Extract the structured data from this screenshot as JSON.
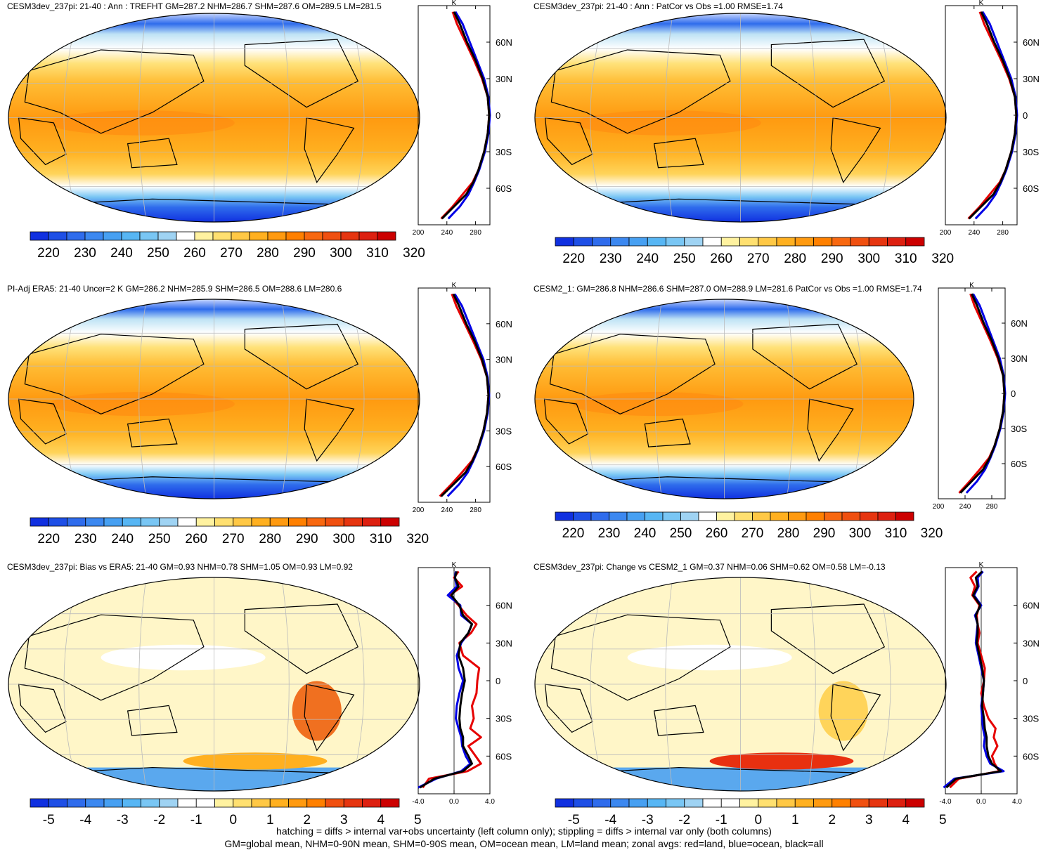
{
  "footer": {
    "line1": "hatching = diffs > internal var+obs uncertainty (left column only); stippling = diffs > internal var only (both columns)",
    "line2": "GM=global mean, NHM=0-90N mean, SHM=0-90S mean, OM=ocean mean, LM=land mean; zonal avgs: red=land, blue=ocean, black=all"
  },
  "zonal_axis": {
    "unit": "K",
    "lat_labels": [
      "60N",
      "30N",
      "0",
      "30S",
      "60S"
    ],
    "abs_ticks": [
      "200",
      "240",
      "280"
    ],
    "diff_ticks": [
      "-4.0",
      "0.0",
      "4.0"
    ]
  },
  "colorbars": {
    "abs": {
      "labels": [
        "220",
        "230",
        "240",
        "250",
        "260",
        "270",
        "280",
        "290",
        "300",
        "310",
        "320"
      ],
      "colors": [
        "#1030e0",
        "#1e4fe6",
        "#2f6cec",
        "#3c88f0",
        "#47a0f2",
        "#57b6f4",
        "#79c6f4",
        "#9fd3f3",
        "#ffffff",
        "#fff2a0",
        "#ffe070",
        "#ffc845",
        "#ffb020",
        "#ff9a10",
        "#ff8000",
        "#f86810",
        "#f05010",
        "#e63510",
        "#dd2010",
        "#cc0000"
      ]
    },
    "diff": {
      "labels": [
        "-5",
        "-4",
        "-3",
        "-2",
        "-1",
        "0",
        "1",
        "2",
        "3",
        "4",
        "5"
      ],
      "colors": [
        "#1030e0",
        "#1e4fe6",
        "#2f6cec",
        "#3c88f0",
        "#47a0f2",
        "#57b6f4",
        "#79c6f4",
        "#9fd3f3",
        "#ffffff",
        "#ffffff",
        "#fff2a0",
        "#ffe070",
        "#ffc845",
        "#ffb020",
        "#ff9a10",
        "#ff8000",
        "#f05010",
        "#e63510",
        "#dd2010",
        "#cc0000"
      ]
    }
  },
  "panels": [
    {
      "title": "CESM3dev_237pi: 21-40 : Ann : TREFHT GM=287.2 NHM=286.7 SHM=287.6 OM=289.5 LM=281.5",
      "kind": "abs"
    },
    {
      "title": "CESM3dev_237pi: 21-40 : Ann : PatCor vs Obs =1.00 RMSE=1.74",
      "kind": "abs"
    },
    {
      "title": "PI-Adj ERA5: 21-40 Uncer=2 K GM=286.2 NHM=285.9 SHM=286.5 OM=288.6 LM=280.6",
      "kind": "abs"
    },
    {
      "title": "CESM2_1: GM=286.8 NHM=286.6 SHM=287.0 OM=288.9 LM=281.6 PatCor vs Obs =1.00 RMSE=1.74",
      "kind": "abs"
    },
    {
      "title": "CESM3dev_237pi: Bias vs ERA5: 21-40 GM=0.93 NHM=0.78 SHM=1.05 OM=0.93 LM=0.92",
      "kind": "diff"
    },
    {
      "title": "CESM3dev_237pi: Change vs CESM2_1 GM=0.37 NHM=0.06 SHM=0.62 OM=0.58 LM=-0.13",
      "kind": "diff"
    }
  ],
  "chart_data": [
    {
      "type": "line",
      "title": "CESM3dev_237pi: 21-40 : Ann : TREFHT GM=287.2 NHM=286.7 SHM=287.6 OM=289.5 LM=281.5",
      "xlabel": "K",
      "xlim": [
        200,
        300
      ],
      "ylim": [
        -90,
        90
      ],
      "lat": [
        -85,
        -75,
        -65,
        -55,
        -45,
        -30,
        -15,
        0,
        15,
        30,
        45,
        60,
        75,
        85
      ],
      "series": [
        {
          "name": "red",
          "values": [
            232,
            248,
            262,
            276,
            284,
            292,
            297,
            299,
            297,
            289,
            278,
            266,
            254,
            248
          ]
        },
        {
          "name": "blue",
          "values": [
            242,
            258,
            270,
            278,
            285,
            293,
            298,
            300,
            298,
            292,
            282,
            272,
            262,
            252
          ]
        },
        {
          "name": "black",
          "values": [
            233,
            250,
            267,
            277,
            284,
            292,
            297,
            299,
            297,
            290,
            280,
            268,
            258,
            250
          ]
        }
      ]
    },
    {
      "type": "line",
      "title": "CESM3dev_237pi: 21-40 : Ann : PatCor vs Obs =1.00 RMSE=1.74",
      "xlabel": "K",
      "xlim": [
        200,
        300
      ],
      "ylim": [
        -90,
        90
      ],
      "lat": [
        -85,
        -75,
        -65,
        -55,
        -45,
        -30,
        -15,
        0,
        15,
        30,
        45,
        60,
        75,
        85
      ],
      "series": [
        {
          "name": "red",
          "values": [
            232,
            248,
            262,
            276,
            284,
            292,
            297,
            299,
            297,
            289,
            278,
            266,
            254,
            248
          ]
        },
        {
          "name": "blue",
          "values": [
            242,
            258,
            270,
            278,
            285,
            293,
            298,
            300,
            298,
            292,
            282,
            272,
            262,
            252
          ]
        },
        {
          "name": "black",
          "values": [
            233,
            250,
            267,
            277,
            284,
            292,
            297,
            299,
            297,
            290,
            280,
            268,
            258,
            250
          ]
        }
      ]
    },
    {
      "type": "line",
      "title": "PI-Adj ERA5: 21-40 Uncer=2 K GM=286.2 NHM=285.9 SHM=286.5 OM=288.6 LM=280.6",
      "xlabel": "K",
      "xlim": [
        200,
        300
      ],
      "ylim": [
        -90,
        90
      ],
      "lat": [
        -85,
        -75,
        -65,
        -55,
        -45,
        -30,
        -15,
        0,
        15,
        30,
        45,
        60,
        75,
        85
      ],
      "series": [
        {
          "name": "red",
          "values": [
            230,
            246,
            261,
            275,
            283,
            291,
            296,
            298,
            296,
            288,
            277,
            265,
            253,
            247
          ]
        },
        {
          "name": "blue",
          "values": [
            241,
            257,
            269,
            277,
            284,
            292,
            297,
            299,
            297,
            291,
            281,
            271,
            261,
            251
          ]
        },
        {
          "name": "black",
          "values": [
            232,
            249,
            266,
            276,
            283,
            291,
            296,
            298,
            296,
            289,
            279,
            267,
            257,
            249
          ]
        }
      ]
    },
    {
      "type": "line",
      "title": "CESM2_1: GM=286.8 NHM=286.6 SHM=287.0 OM=288.9 LM=281.6 PatCor vs Obs =1.00 RMSE=1.74",
      "xlabel": "K",
      "xlim": [
        200,
        300
      ],
      "ylim": [
        -90,
        90
      ],
      "lat": [
        -85,
        -75,
        -65,
        -55,
        -45,
        -30,
        -15,
        0,
        15,
        30,
        45,
        60,
        75,
        85
      ],
      "series": [
        {
          "name": "red",
          "values": [
            231,
            247,
            262,
            276,
            284,
            292,
            297,
            299,
            297,
            289,
            278,
            266,
            254,
            248
          ]
        },
        {
          "name": "blue",
          "values": [
            242,
            258,
            270,
            278,
            285,
            293,
            298,
            300,
            298,
            292,
            282,
            272,
            262,
            252
          ]
        },
        {
          "name": "black",
          "values": [
            233,
            250,
            267,
            277,
            284,
            292,
            297,
            299,
            297,
            290,
            280,
            268,
            258,
            250
          ]
        }
      ]
    },
    {
      "type": "line",
      "title": "CESM3dev_237pi: Bias vs ERA5: 21-40 GM=0.93 NHM=0.78 SHM=1.05 OM=0.93 LM=0.92",
      "xlabel": "K",
      "xlim": [
        -4,
        4
      ],
      "ylim": [
        -90,
        90
      ],
      "lat": [
        -85,
        -78,
        -72,
        -66,
        -60,
        -52,
        -45,
        -38,
        -30,
        -20,
        -10,
        0,
        10,
        20,
        30,
        38,
        45,
        52,
        60,
        68,
        75,
        82,
        87
      ],
      "series": [
        {
          "name": "red",
          "values": [
            -3.5,
            -2.8,
            1.5,
            3.0,
            2.4,
            1.6,
            3.0,
            1.8,
            2.2,
            2.0,
            2.5,
            2.6,
            2.8,
            1.0,
            0.6,
            1.9,
            2.5,
            1.4,
            0.5,
            -0.5,
            0.9,
            0.0,
            0.5
          ]
        },
        {
          "name": "blue",
          "values": [
            -4.0,
            -2.0,
            0.8,
            1.8,
            1.3,
            0.9,
            0.8,
            0.5,
            0.2,
            0.3,
            0.6,
            1.0,
            0.5,
            0.3,
            0.8,
            1.6,
            2.0,
            0.8,
            0.7,
            -0.7,
            0.3,
            0.1,
            0.2
          ]
        },
        {
          "name": "black",
          "values": [
            -3.8,
            -2.2,
            1.0,
            2.0,
            1.6,
            1.0,
            1.0,
            0.7,
            0.6,
            0.7,
            0.9,
            1.2,
            1.0,
            0.5,
            0.7,
            1.6,
            2.0,
            1.0,
            0.6,
            -0.3,
            0.5,
            0.1,
            0.3
          ]
        }
      ]
    },
    {
      "type": "line",
      "title": "CESM3dev_237pi: Change vs CESM2_1 GM=0.37 NHM=0.06 SHM=0.62 OM=0.58 LM=-0.13",
      "xlabel": "K",
      "xlim": [
        -4,
        4
      ],
      "ylim": [
        -90,
        90
      ],
      "lat": [
        -85,
        -78,
        -72,
        -66,
        -60,
        -52,
        -45,
        -38,
        -30,
        -20,
        -10,
        0,
        10,
        20,
        30,
        38,
        45,
        52,
        60,
        68,
        75,
        82,
        87
      ],
      "series": [
        {
          "name": "red",
          "values": [
            -3.5,
            -2.5,
            2.0,
            1.5,
            1.2,
            1.8,
            1.4,
            1.6,
            0.8,
            0.3,
            0.0,
            0.3,
            0.4,
            0.0,
            -0.4,
            -0.2,
            -0.4,
            -0.5,
            -0.2,
            -1.0,
            -0.7,
            -1.2,
            -0.5
          ]
        },
        {
          "name": "blue",
          "values": [
            -4.2,
            -3.0,
            2.5,
            1.0,
            0.6,
            0.3,
            0.4,
            0.2,
            0.1,
            0.0,
            0.2,
            0.3,
            0.0,
            -0.3,
            -0.6,
            -0.5,
            -0.4,
            -0.7,
            0.0,
            -0.8,
            -0.3,
            -0.4,
            0.2
          ]
        },
        {
          "name": "black",
          "values": [
            -3.9,
            -2.8,
            2.2,
            1.2,
            0.8,
            0.6,
            0.6,
            0.4,
            0.3,
            0.1,
            0.2,
            0.3,
            0.1,
            -0.2,
            -0.5,
            -0.4,
            -0.4,
            -0.6,
            -0.1,
            -0.9,
            -0.4,
            -0.6,
            0.1
          ]
        }
      ]
    }
  ]
}
